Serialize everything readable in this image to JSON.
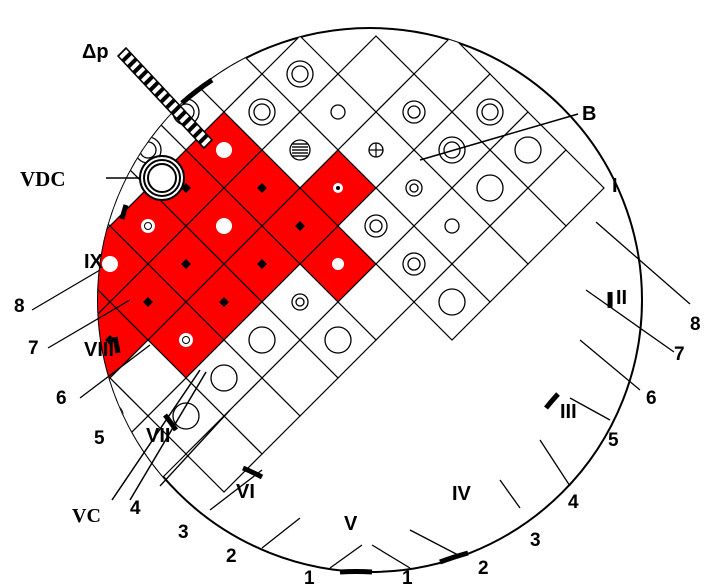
{
  "colors": {
    "fuel": "#ff0000",
    "line": "#000000",
    "background": "#ffffff"
  },
  "labels": {
    "dp": "Δp",
    "b": "B",
    "vdc": "VDC",
    "vc": "VC"
  },
  "roman_marks": [
    "I",
    "II",
    "III",
    "IV",
    "V",
    "VI",
    "VII",
    "VIII",
    "IX"
  ],
  "radial_numbers_right": [
    "1",
    "2",
    "3",
    "4",
    "5",
    "6",
    "7",
    "8"
  ],
  "radial_numbers_left": [
    "1",
    "2",
    "3",
    "4",
    "5",
    "6",
    "7",
    "8"
  ],
  "cells": [
    {
      "r": 0,
      "c": 3,
      "t": "e"
    },
    {
      "r": 0,
      "c": 4,
      "t": "dr"
    },
    {
      "r": 0,
      "c": 5,
      "t": "lc"
    },
    {
      "r": 0,
      "c": 6,
      "t": "e"
    },
    {
      "r": 1,
      "c": 2,
      "t": "e"
    },
    {
      "r": 1,
      "c": 3,
      "t": "sc"
    },
    {
      "r": 1,
      "c": 4,
      "t": "dr"
    },
    {
      "r": 1,
      "c": 5,
      "t": "lc"
    },
    {
      "r": 1,
      "c": 6,
      "t": "e"
    },
    {
      "r": 2,
      "c": 1,
      "t": "dr"
    },
    {
      "r": 2,
      "c": 2,
      "t": "oc"
    },
    {
      "r": 2,
      "c": 3,
      "t": "xc"
    },
    {
      "r": 2,
      "c": 4,
      "t": "sr"
    },
    {
      "r": 2,
      "c": 5,
      "t": "oc"
    },
    {
      "r": 2,
      "c": 6,
      "t": "e"
    },
    {
      "r": 3,
      "c": 0,
      "t": "e"
    },
    {
      "r": 3,
      "c": 1,
      "t": "dr"
    },
    {
      "r": 3,
      "c": 2,
      "t": "hc"
    },
    {
      "r": 3,
      "c": 3,
      "t": "F-dot"
    },
    {
      "r": 3,
      "c": 4,
      "t": "sc"
    },
    {
      "r": 3,
      "c": 5,
      "t": "sc"
    },
    {
      "r": 3,
      "c": 6,
      "t": "lc"
    },
    {
      "r": 4,
      "c": 0,
      "t": "dr"
    },
    {
      "r": 4,
      "c": 1,
      "t": "F-wc"
    },
    {
      "r": 4,
      "c": 2,
      "t": "F-dia"
    },
    {
      "r": 4,
      "c": 3,
      "t": "F-dia"
    },
    {
      "r": 4,
      "c": 4,
      "t": "F-sw"
    },
    {
      "r": 4,
      "c": 5,
      "t": "e"
    },
    {
      "r": 5,
      "c": 0,
      "t": "dr"
    },
    {
      "r": 5,
      "c": 1,
      "t": "F-dia"
    },
    {
      "r": 5,
      "c": 2,
      "t": "F-wc"
    },
    {
      "r": 5,
      "c": 3,
      "t": "F-dia"
    },
    {
      "r": 5,
      "c": 4,
      "t": "sr"
    },
    {
      "r": 5,
      "c": 5,
      "t": "lc"
    },
    {
      "r": 6,
      "c": 0,
      "t": "e"
    },
    {
      "r": 6,
      "c": 1,
      "t": "F-rw"
    },
    {
      "r": 6,
      "c": 2,
      "t": "F-dia"
    },
    {
      "r": 6,
      "c": 3,
      "t": "F-dia"
    },
    {
      "r": 6,
      "c": 4,
      "t": "lc"
    },
    {
      "r": 6,
      "c": 5,
      "t": "e"
    },
    {
      "r": 7,
      "c": 0,
      "t": "dr"
    },
    {
      "r": 7,
      "c": 1,
      "t": "F-wc"
    },
    {
      "r": 7,
      "c": 2,
      "t": "F-dia"
    },
    {
      "r": 7,
      "c": 3,
      "t": "F-rw"
    },
    {
      "r": 7,
      "c": 4,
      "t": "lc"
    },
    {
      "r": 7,
      "c": 5,
      "t": "e"
    },
    {
      "r": 8,
      "c": 0,
      "t": "dr"
    },
    {
      "r": 8,
      "c": 1,
      "t": "F-dia"
    },
    {
      "r": 8,
      "c": 2,
      "t": "F-dia"
    },
    {
      "r": 8,
      "c": 3,
      "t": "e"
    },
    {
      "r": 8,
      "c": 4,
      "t": "lc"
    },
    {
      "r": 8,
      "c": 5,
      "t": "e"
    },
    {
      "r": 9,
      "c": 0,
      "t": "sr"
    },
    {
      "r": 9,
      "c": 1,
      "t": "F-dot"
    },
    {
      "r": 9,
      "c": 2,
      "t": "F-wc"
    },
    {
      "r": 9,
      "c": 3,
      "t": "dr"
    },
    {
      "r": 9,
      "c": 4,
      "t": "e"
    },
    {
      "r": 10,
      "c": 0,
      "t": "dr"
    },
    {
      "r": 10,
      "c": 1,
      "t": "F-rw"
    },
    {
      "r": 10,
      "c": 2,
      "t": "dr"
    },
    {
      "r": 10,
      "c": 3,
      "t": "lc"
    },
    {
      "r": 10,
      "c": 4,
      "t": "lc"
    },
    {
      "r": 11,
      "c": 0,
      "t": "dr"
    },
    {
      "r": 11,
      "c": 1,
      "t": "sr"
    },
    {
      "r": 11,
      "c": 2,
      "t": "lc"
    },
    {
      "r": 11,
      "c": 3,
      "t": "e"
    }
  ]
}
